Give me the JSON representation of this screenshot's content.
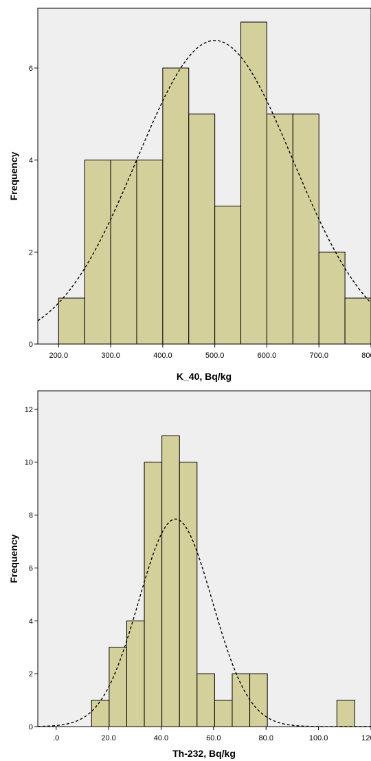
{
  "colors": {
    "plot_background": "#efefef",
    "bar_fill": "#d4d09b",
    "bar_stroke": "#000000",
    "curve": "#000000"
  },
  "chart_data": [
    {
      "type": "bar",
      "subtype": "histogram-with-normal-curve",
      "title": "",
      "xlabel": "K_40,  Bq/kg",
      "ylabel": "Frequency",
      "xlim": [
        160,
        800
      ],
      "ylim": [
        0,
        7.3
      ],
      "xticks": [
        200,
        300,
        400,
        500,
        600,
        700,
        800
      ],
      "xtick_labels": [
        "200.0",
        "300.0",
        "400.0",
        "500.0",
        "600.0",
        "700.0",
        "800.0"
      ],
      "yticks": [
        0,
        2,
        4,
        6
      ],
      "ytick_labels": [
        "0",
        "2",
        "4",
        "6"
      ],
      "bins": [
        {
          "start": 200,
          "end": 250,
          "count": 1
        },
        {
          "start": 250,
          "end": 300,
          "count": 4
        },
        {
          "start": 300,
          "end": 350,
          "count": 4
        },
        {
          "start": 350,
          "end": 400,
          "count": 4
        },
        {
          "start": 400,
          "end": 450,
          "count": 6
        },
        {
          "start": 450,
          "end": 500,
          "count": 5
        },
        {
          "start": 500,
          "end": 550,
          "count": 3
        },
        {
          "start": 550,
          "end": 600,
          "count": 7
        },
        {
          "start": 600,
          "end": 650,
          "count": 5
        },
        {
          "start": 650,
          "end": 700,
          "count": 5
        },
        {
          "start": 700,
          "end": 750,
          "count": 2
        },
        {
          "start": 750,
          "end": 800,
          "count": 1
        }
      ],
      "normal_curve": {
        "mean": 500,
        "sd": 150,
        "peak": 6.6
      },
      "grid": false,
      "legend": "none"
    },
    {
      "type": "bar",
      "subtype": "histogram-with-normal-curve",
      "title": "",
      "xlabel": "Th-232,  Bq/kg",
      "ylabel": "Frequency",
      "xlim": [
        -7,
        120
      ],
      "ylim": [
        0,
        12.7
      ],
      "xticks": [
        0,
        20,
        40,
        60,
        80,
        100,
        120
      ],
      "xtick_labels": [
        ".0",
        "20.0",
        "40.0",
        "60.0",
        "80.0",
        "100.0",
        "120.0"
      ],
      "yticks": [
        0,
        2,
        4,
        6,
        8,
        10,
        12
      ],
      "ytick_labels": [
        "0",
        "2",
        "4",
        "6",
        "8",
        "10",
        "12"
      ],
      "bins": [
        {
          "start": 13.5,
          "end": 20.2,
          "count": 1
        },
        {
          "start": 20.2,
          "end": 26.9,
          "count": 3
        },
        {
          "start": 26.9,
          "end": 33.6,
          "count": 4
        },
        {
          "start": 33.6,
          "end": 40.3,
          "count": 10
        },
        {
          "start": 40.3,
          "end": 47.0,
          "count": 11
        },
        {
          "start": 47.0,
          "end": 53.7,
          "count": 10
        },
        {
          "start": 53.7,
          "end": 60.4,
          "count": 2
        },
        {
          "start": 60.4,
          "end": 67.1,
          "count": 1
        },
        {
          "start": 67.1,
          "end": 73.8,
          "count": 2
        },
        {
          "start": 73.8,
          "end": 80.5,
          "count": 2
        },
        {
          "start": 107.0,
          "end": 113.8,
          "count": 1
        }
      ],
      "normal_curve": {
        "mean": 45.5,
        "sd": 14,
        "peak": 7.85
      },
      "grid": false,
      "legend": "none"
    }
  ]
}
